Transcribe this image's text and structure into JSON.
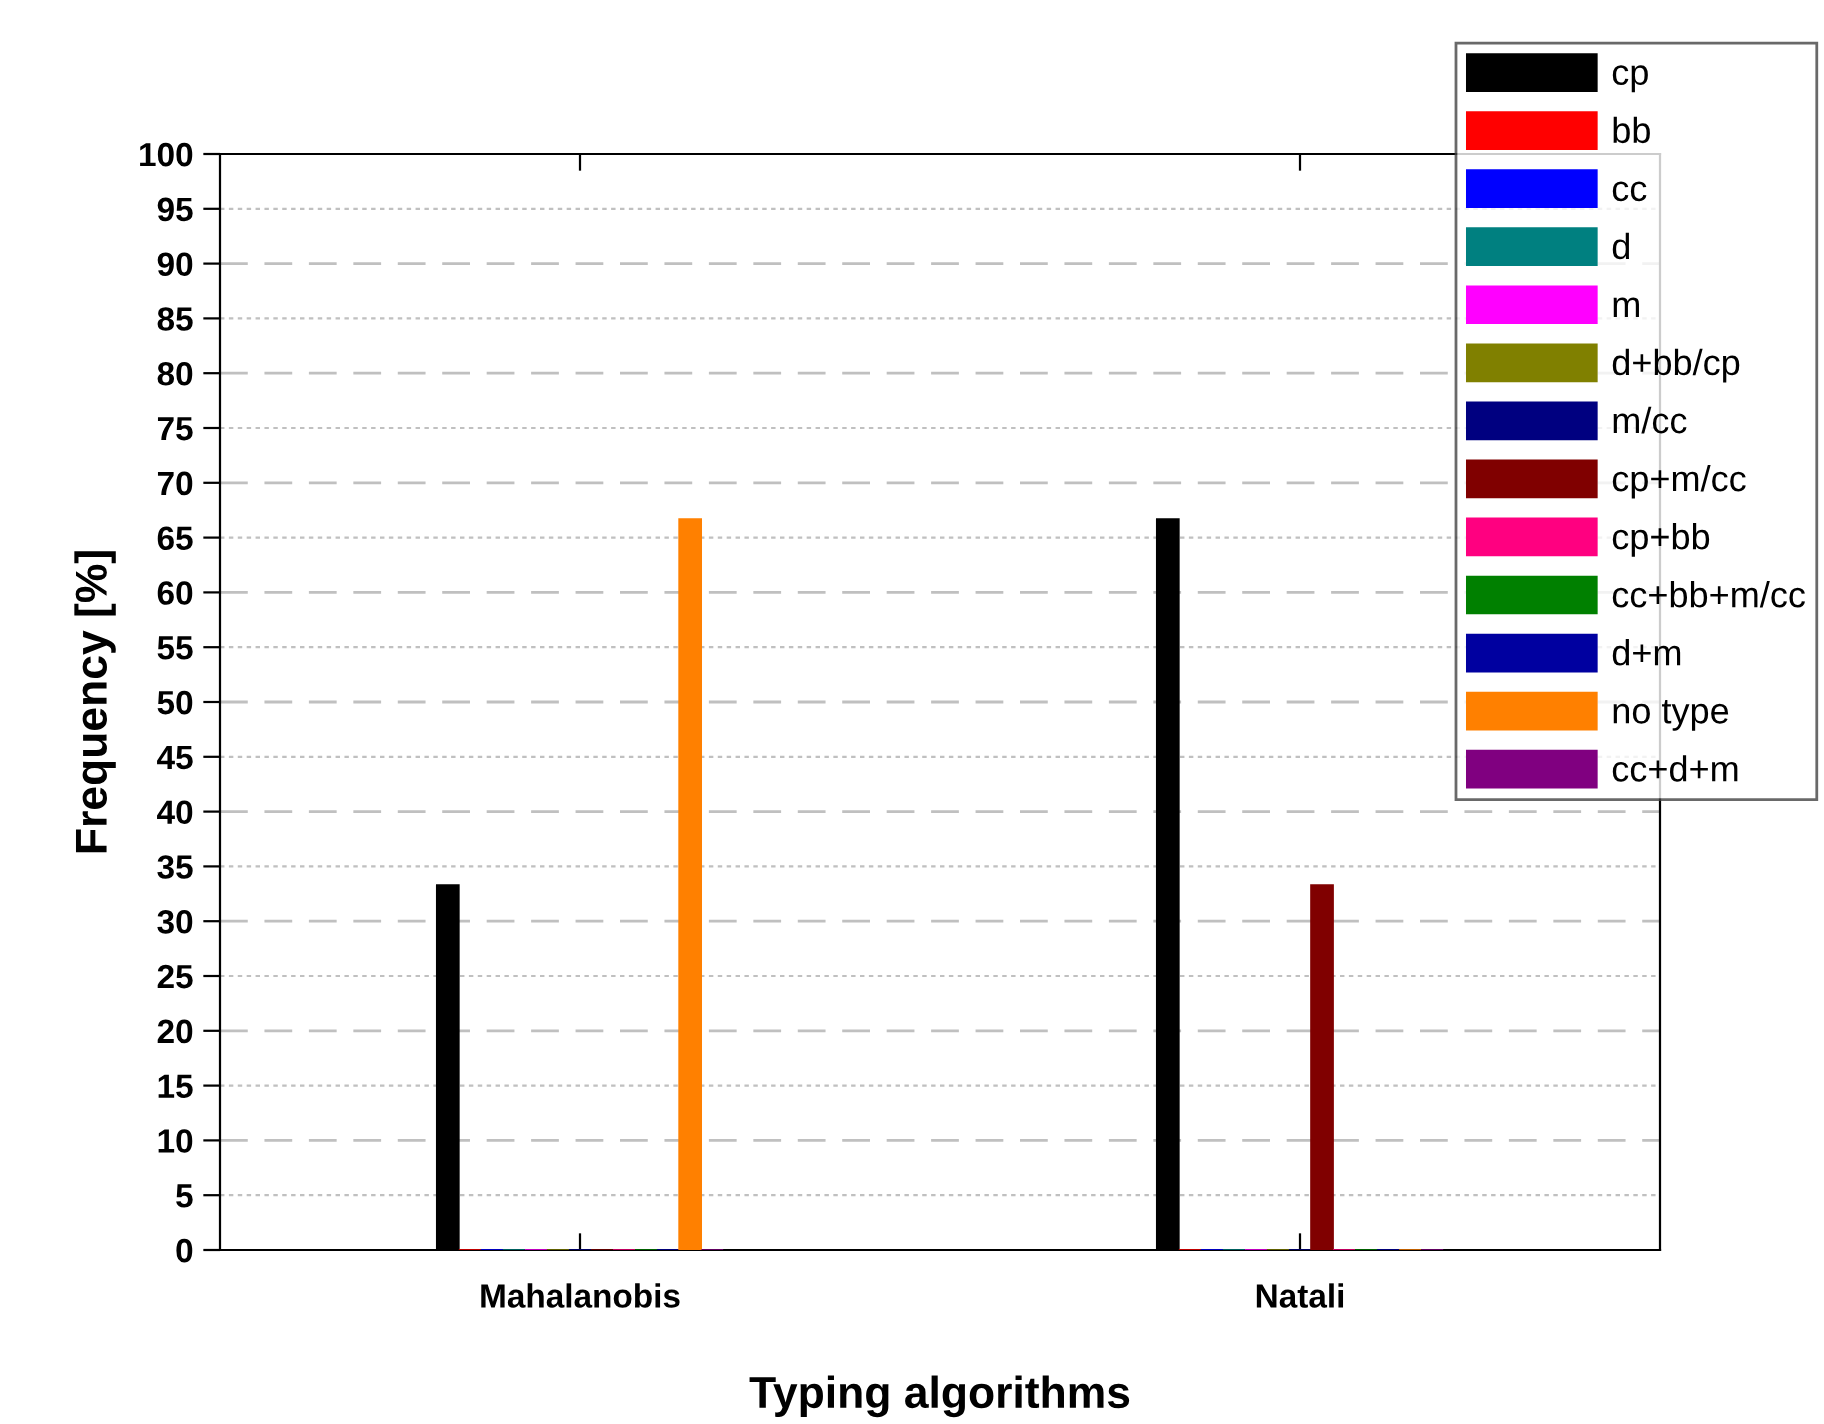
{
  "chart_data": {
    "type": "bar",
    "xlabel": "Typing algorithms",
    "ylabel": "Frequency [%]",
    "categories": [
      "Mahalanobis",
      "Natali"
    ],
    "series": [
      {
        "name": "cp",
        "color": "#000000",
        "values": [
          33.3,
          66.7
        ]
      },
      {
        "name": "bb",
        "color": "#ff0000",
        "values": [
          0,
          0
        ]
      },
      {
        "name": "cc",
        "color": "#0000ff",
        "values": [
          0,
          0
        ]
      },
      {
        "name": "d",
        "color": "#008080",
        "values": [
          0,
          0
        ]
      },
      {
        "name": "m",
        "color": "#ff00ff",
        "values": [
          0,
          0
        ]
      },
      {
        "name": "d+bb/cp",
        "color": "#808000",
        "values": [
          0,
          0
        ]
      },
      {
        "name": "m/cc",
        "color": "#000080",
        "values": [
          0,
          0
        ]
      },
      {
        "name": "cp+m/cc",
        "color": "#800000",
        "values": [
          0,
          33.3
        ]
      },
      {
        "name": "cp+bb",
        "color": "#ff0080",
        "values": [
          0,
          0
        ]
      },
      {
        "name": "cc+bb+m/cc",
        "color": "#008000",
        "values": [
          0,
          0
        ]
      },
      {
        "name": "d+m",
        "color": "#0000a0",
        "values": [
          0,
          0
        ]
      },
      {
        "name": "no type",
        "color": "#ff8000",
        "values": [
          66.7,
          0
        ]
      },
      {
        "name": "cc+d+m",
        "color": "#800080",
        "values": [
          0,
          0
        ]
      }
    ],
    "ylim": [
      0,
      100
    ],
    "yticks": [
      0,
      5,
      10,
      15,
      20,
      25,
      30,
      35,
      40,
      45,
      50,
      55,
      60,
      65,
      70,
      75,
      80,
      85,
      90,
      95,
      100
    ],
    "grid": "y",
    "legend": "top right"
  }
}
